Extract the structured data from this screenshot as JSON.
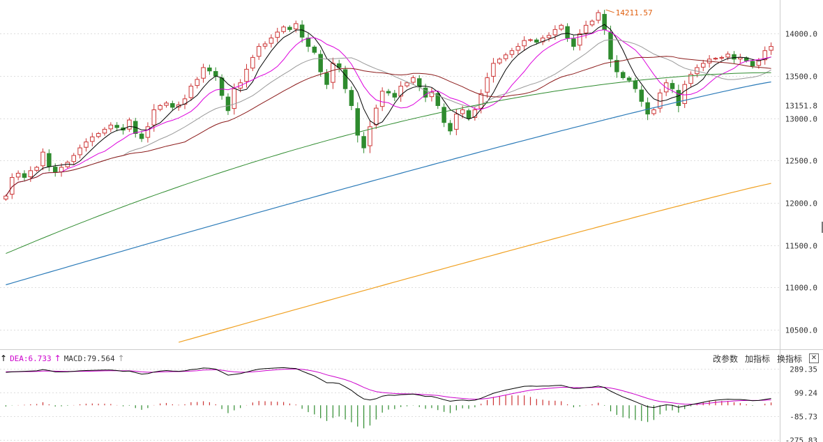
{
  "chart_data": {
    "type": "candlestick",
    "colors": {
      "up": "#cc3333",
      "down": "#2e8b2e",
      "ma5": "#000000",
      "ma10": "#dd00dd",
      "ma20": "#999999",
      "ma30": "#8b1a1a",
      "ma60": "#2e8b2e",
      "ma120": "#2a7ab8",
      "ma250": "#f0a020",
      "grid": "#dddddd",
      "peak": "#e06010",
      "dif": "#000000",
      "dea": "#cc00cc",
      "hist_up": "#cc3333",
      "hist_down": "#2e8b2e"
    },
    "price_axis": {
      "ylim": [
        10300,
        14350
      ],
      "ticks": [
        "14000.0",
        "13500.0",
        "13151.8",
        "13000.0",
        "12500.0",
        "12000.0",
        "11500.0",
        "11000.0",
        "10500.0"
      ],
      "tick_values": [
        14000,
        13500,
        13151.8,
        13000,
        12500,
        12000,
        11500,
        11000,
        10500
      ]
    },
    "peak_label": "14211.57",
    "peak_value": 14211.57,
    "closes": [
      12080,
      12300,
      12350,
      12300,
      12380,
      12420,
      12600,
      12430,
      12360,
      12420,
      12480,
      12560,
      12650,
      12720,
      12780,
      12820,
      12870,
      12920,
      12890,
      12860,
      12980,
      12820,
      12760,
      12900,
      13100,
      13150,
      13180,
      13130,
      13160,
      13230,
      13380,
      13460,
      13600,
      13560,
      13500,
      13270,
      13090,
      13350,
      13420,
      13580,
      13720,
      13850,
      13880,
      13950,
      14020,
      14080,
      14050,
      14120,
      13960,
      13850,
      13780,
      13550,
      13400,
      13650,
      13600,
      13350,
      13150,
      12800,
      12650,
      12900,
      13120,
      13320,
      13300,
      13250,
      13380,
      13420,
      13480,
      13370,
      13250,
      13310,
      13150,
      12950,
      12850,
      13050,
      13100,
      13000,
      13100,
      13290,
      13480,
      13650,
      13700,
      13750,
      13800,
      13850,
      13920,
      13930,
      13900,
      13950,
      13980,
      14050,
      14100,
      13950,
      13850,
      14000,
      14100,
      14150,
      14250,
      14050,
      13700,
      13550,
      13480,
      13450,
      13350,
      13200,
      13050,
      13100,
      13300,
      13420,
      13350,
      13150,
      13400,
      13520,
      13600,
      13650,
      13700,
      13710,
      13720,
      13760,
      13700,
      13720,
      13680,
      13620,
      13680,
      13800,
      13850
    ],
    "dif": [
      260,
      264,
      266,
      268,
      270,
      272,
      282,
      274,
      264,
      264,
      265,
      268,
      272,
      274,
      276,
      277,
      278,
      278,
      274,
      268,
      270,
      258,
      246,
      250,
      262,
      270,
      274,
      270,
      268,
      272,
      282,
      286,
      294,
      292,
      285,
      262,
      238,
      244,
      250,
      262,
      275,
      285,
      289,
      292,
      295,
      297,
      293,
      290,
      270,
      250,
      232,
      205,
      178,
      178,
      172,
      146,
      118,
      80,
      50,
      42,
      52,
      72,
      80,
      78,
      84,
      86,
      88,
      80,
      70,
      70,
      58,
      44,
      32,
      38,
      42,
      36,
      40,
      55,
      75,
      95,
      108,
      120,
      130,
      140,
      150,
      152,
      150,
      152,
      152,
      156,
      158,
      146,
      132,
      134,
      140,
      144,
      152,
      140,
      112,
      88,
      66,
      48,
      28,
      8,
      -12,
      -18,
      -6,
      4,
      0,
      -16,
      -6,
      4,
      14,
      24,
      34,
      40,
      44,
      48,
      46,
      46,
      42,
      36,
      38,
      46,
      54
    ],
    "dea": [
      265,
      265,
      265,
      266,
      266,
      267,
      270,
      270,
      269,
      268,
      267,
      267,
      268,
      268,
      269,
      271,
      272,
      273,
      273,
      272,
      272,
      269,
      264,
      261,
      261,
      263,
      265,
      266,
      266,
      268,
      270,
      273,
      278,
      280,
      281,
      277,
      269,
      264,
      261,
      261,
      264,
      268,
      273,
      277,
      281,
      284,
      286,
      287,
      284,
      277,
      268,
      256,
      240,
      228,
      216,
      202,
      185,
      164,
      141,
      122,
      108,
      101,
      97,
      93,
      91,
      90,
      89,
      87,
      84,
      81,
      77,
      70,
      63,
      58,
      54,
      50,
      48,
      49,
      54,
      62,
      71,
      81,
      91,
      101,
      111,
      119,
      125,
      130,
      134,
      138,
      142,
      142,
      140,
      139,
      139,
      140,
      142,
      142,
      136,
      126,
      114,
      100,
      86,
      70,
      54,
      40,
      30,
      25,
      20,
      13,
      9,
      8,
      9,
      12,
      17,
      22,
      27,
      31,
      34,
      37,
      38,
      38,
      38,
      40,
      43
    ]
  },
  "macd_header": {
    "dea_text": "DEA:6.733",
    "macd_text": "MACD:79.564"
  },
  "macd_axis": {
    "ylim": [
      -290,
      310
    ],
    "ticks": [
      "289.35",
      "99.24",
      "-85.73",
      "-275.83"
    ],
    "tick_values": [
      289.35,
      99.24,
      -85.73,
      -275.83
    ]
  },
  "toolbar": {
    "change_params": "改参数",
    "add_indicator": "加指标",
    "switch_indicator": "换指标",
    "close": "✕"
  }
}
